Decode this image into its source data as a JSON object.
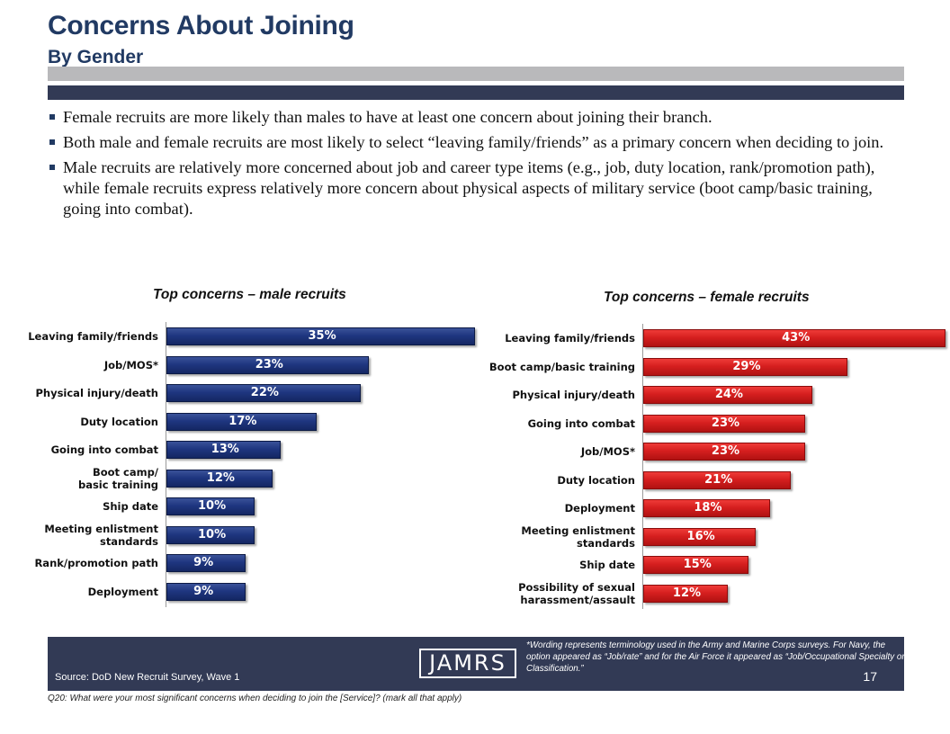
{
  "header": {
    "title": "Concerns About Joining",
    "subtitle": "By Gender"
  },
  "bullets": [
    "Female recruits are more likely than males to have at least one concern about joining their branch.",
    "Both male and female recruits are most likely to select “leaving family/friends” as a primary concern when deciding to join.",
    "Male recruits are relatively more concerned about job and career type items (e.g., job, duty location, rank/promotion path), while female recruits express relatively more concern about physical aspects of military service (boot camp/basic training, going into combat)."
  ],
  "colors": {
    "navy": "#213a63",
    "male_bar": "#1f3680",
    "female_bar": "#d61f1f",
    "footer": "#323a55"
  },
  "chart_data": [
    {
      "type": "bar",
      "orientation": "horizontal",
      "title": "Top concerns – male recruits",
      "categories": [
        "Leaving family/friends",
        "Job/MOS*",
        "Physical injury/death",
        "Duty location",
        "Going into combat",
        "Boot camp/\nbasic training",
        "Ship date",
        "Meeting enlistment\nstandards",
        "Rank/promotion path",
        "Deployment"
      ],
      "values": [
        35,
        23,
        22,
        17,
        13,
        12,
        10,
        10,
        9,
        9
      ],
      "value_labels": [
        "35%",
        "23%",
        "22%",
        "17%",
        "13%",
        "12%",
        "10%",
        "10%",
        "9%",
        "9%"
      ],
      "unit": "%",
      "color": "#1f3680"
    },
    {
      "type": "bar",
      "orientation": "horizontal",
      "title": "Top concerns – female recruits",
      "categories": [
        "Leaving family/friends",
        "Boot camp/basic training",
        "Physical injury/death",
        "Going into combat",
        "Job/MOS*",
        "Duty location",
        "Deployment",
        "Meeting enlistment\nstandards",
        "Ship date",
        "Possibility of sexual\nharassment/assault"
      ],
      "values": [
        43,
        29,
        24,
        23,
        23,
        21,
        18,
        16,
        15,
        12
      ],
      "value_labels": [
        "43%",
        "29%",
        "24%",
        "23%",
        "23%",
        "21%",
        "18%",
        "16%",
        "15%",
        "12%"
      ],
      "unit": "%",
      "color": "#d61f1f"
    }
  ],
  "footer": {
    "source": "Source:  DoD New Recruit Survey, Wave 1",
    "logo_text": "JAMRS",
    "footnote": "*Wording represents terminology used in the Army and Marine Corps surveys. For Navy, the option appeared as “Job/rate” and for the Air Force it appeared as “Job/Occupational Specialty or Classification.”",
    "page_number": "17"
  },
  "question": "Q20:  What were your most significant concerns when deciding to join the [Service]?  (mark all that apply)"
}
